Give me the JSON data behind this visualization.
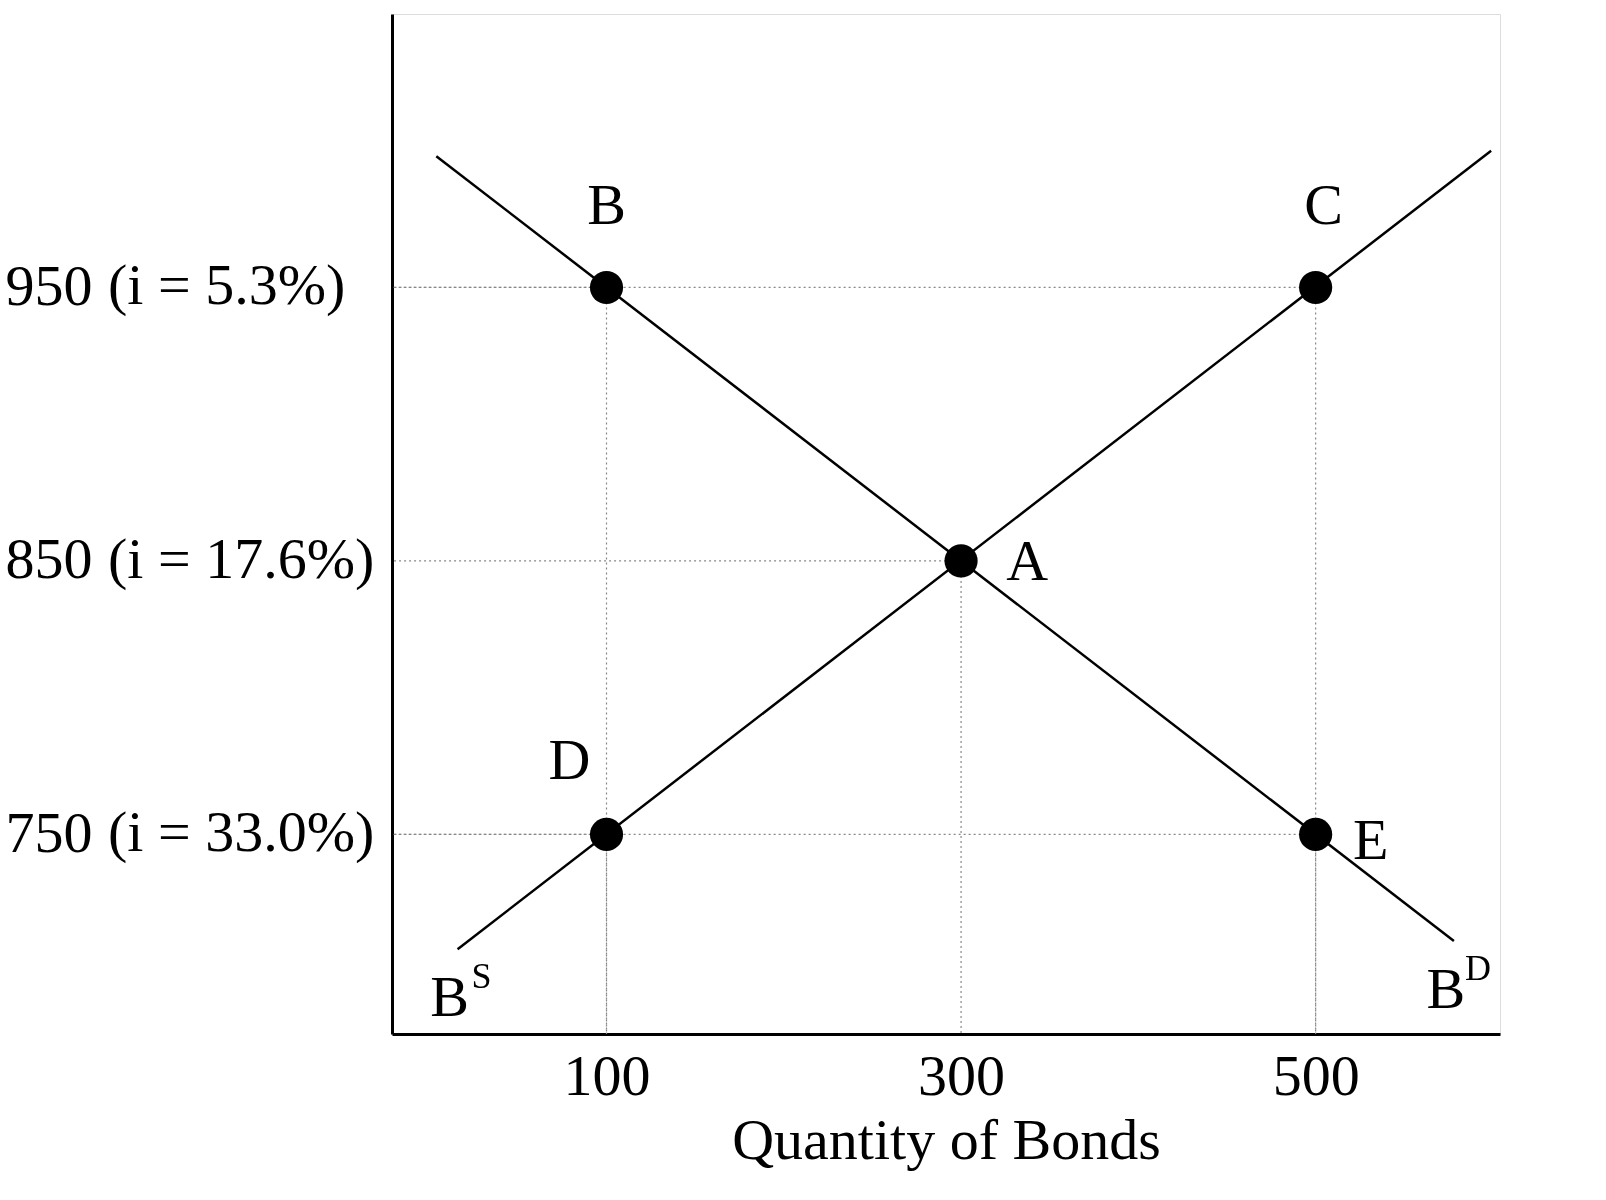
{
  "chart_data": {
    "type": "line",
    "xlabel": "Quantity of Bonds",
    "xlim": [
      -21,
      604
    ],
    "ylim": [
      677,
      1050
    ],
    "xticks": [
      100,
      300,
      500
    ],
    "yticks": [
      750,
      850,
      950
    ],
    "grid": true,
    "line_style": "solid",
    "series": [
      {
        "name": "B$^{S}$",
        "color": "#000000",
        "x": [
          16,
          599
        ],
        "values": [
          708,
          1000
        ]
      },
      {
        "name": "B$^{D}$",
        "color": "#000000",
        "x": [
          4,
          578
        ],
        "values": [
          998,
          711
        ]
      },
      {
        "color": "#000000",
        "type": "scatter",
        "marker": "circle",
        "x": [
          300,
          100,
          500,
          100,
          500
        ],
        "values": [
          850,
          950,
          950,
          750,
          750
        ]
      }
    ],
    "annotations": [
      {
        "text": "A",
        "x": 300,
        "y": 850
      },
      {
        "text": "B",
        "x": 100,
        "y": 950
      },
      {
        "text": "C",
        "x": 500,
        "y": 950
      },
      {
        "text": "D",
        "x": 100,
        "y": 750
      },
      {
        "text": "E",
        "x": 500,
        "y": 750
      },
      "(i = 33.0%)",
      "(i = 17.6%)",
      "(i = 5.3%)"
    ]
  }
}
